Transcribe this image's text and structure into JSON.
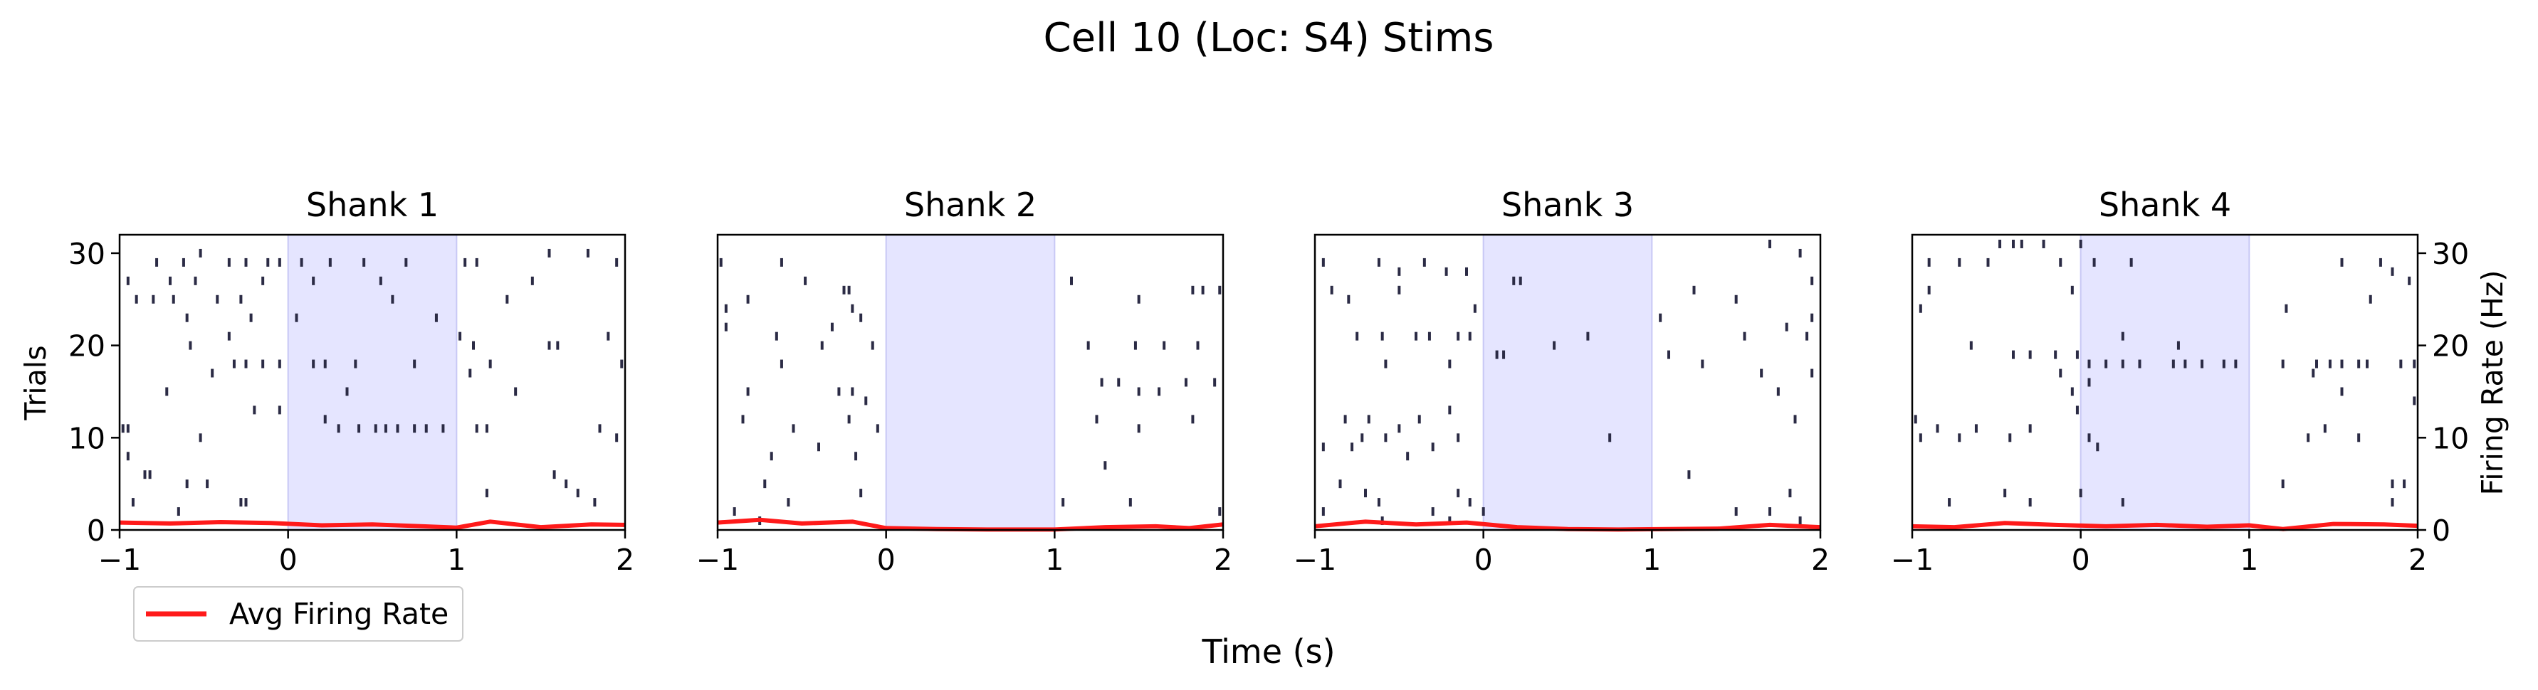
{
  "figure": {
    "title": "Cell 10 (Loc: S4) Stims",
    "xlabel": "Time (s)",
    "ylabel_left": "Trials",
    "ylabel_right": "Firing Rate (Hz)",
    "legend": {
      "label": "Avg Firing Rate",
      "color": "#ff1a1a",
      "placement": "lower-left, below first panel"
    },
    "colors": {
      "spike": "#2b2b45",
      "stim_window": "#e5e5ff",
      "rate_line": "#ff1a1a"
    }
  },
  "chart_data": [
    {
      "type": "raster",
      "title": "Shank 1",
      "xlim": [
        -1,
        2
      ],
      "ylim": [
        0,
        32
      ],
      "xticks": [
        "−1",
        "0",
        "1",
        "2"
      ],
      "yticks_left": [
        "0",
        "10",
        "20",
        "30"
      ],
      "stim_window": [
        0,
        1
      ],
      "spikes": [
        [
          -0.78,
          29
        ],
        [
          -0.62,
          29
        ],
        [
          -0.52,
          30
        ],
        [
          -0.35,
          29
        ],
        [
          -0.25,
          29
        ],
        [
          -0.12,
          29
        ],
        [
          -0.05,
          29
        ],
        [
          0.08,
          29
        ],
        [
          0.25,
          29
        ],
        [
          0.45,
          29
        ],
        [
          0.7,
          29
        ],
        [
          1.05,
          29
        ],
        [
          1.12,
          29
        ],
        [
          1.55,
          30
        ],
        [
          1.78,
          30
        ],
        [
          1.95,
          29
        ],
        [
          -0.95,
          27
        ],
        [
          -0.7,
          27
        ],
        [
          -0.55,
          27
        ],
        [
          -0.15,
          27
        ],
        [
          0.15,
          27
        ],
        [
          0.55,
          27
        ],
        [
          1.45,
          27
        ],
        [
          -0.9,
          25
        ],
        [
          -0.8,
          25
        ],
        [
          -0.68,
          25
        ],
        [
          -0.42,
          25
        ],
        [
          -0.28,
          25
        ],
        [
          0.62,
          25
        ],
        [
          1.3,
          25
        ],
        [
          -0.6,
          23
        ],
        [
          -0.22,
          23
        ],
        [
          0.05,
          23
        ],
        [
          0.88,
          23
        ],
        [
          1.02,
          21
        ],
        [
          -0.35,
          21
        ],
        [
          1.9,
          21
        ],
        [
          -0.58,
          20
        ],
        [
          1.1,
          20
        ],
        [
          1.55,
          20
        ],
        [
          1.6,
          20
        ],
        [
          -0.32,
          18
        ],
        [
          -0.25,
          18
        ],
        [
          -0.15,
          18
        ],
        [
          -0.05,
          18
        ],
        [
          0.15,
          18
        ],
        [
          0.22,
          18
        ],
        [
          0.4,
          18
        ],
        [
          0.75,
          18
        ],
        [
          1.2,
          18
        ],
        [
          1.98,
          18
        ],
        [
          -0.45,
          17
        ],
        [
          1.08,
          17
        ],
        [
          -0.72,
          15
        ],
        [
          0.35,
          15
        ],
        [
          1.35,
          15
        ],
        [
          -0.2,
          13
        ],
        [
          -0.05,
          13
        ],
        [
          0.22,
          12
        ],
        [
          0.3,
          11
        ],
        [
          0.42,
          11
        ],
        [
          0.52,
          11
        ],
        [
          0.58,
          11
        ],
        [
          0.65,
          11
        ],
        [
          0.75,
          11
        ],
        [
          0.82,
          11
        ],
        [
          0.92,
          11
        ],
        [
          -0.98,
          11
        ],
        [
          -0.95,
          11
        ],
        [
          -0.52,
          10
        ],
        [
          1.12,
          11
        ],
        [
          1.18,
          11
        ],
        [
          1.85,
          11
        ],
        [
          1.95,
          10
        ],
        [
          -0.95,
          8
        ],
        [
          -0.85,
          6
        ],
        [
          -0.82,
          6
        ],
        [
          -0.6,
          5
        ],
        [
          -0.48,
          5
        ],
        [
          1.58,
          6
        ],
        [
          1.65,
          5
        ],
        [
          1.72,
          4
        ],
        [
          -0.92,
          3
        ],
        [
          -0.28,
          3
        ],
        [
          -0.25,
          3
        ],
        [
          1.18,
          4
        ],
        [
          1.82,
          3
        ],
        [
          -0.65,
          2
        ]
      ],
      "rate": {
        "x": [
          -1,
          -0.7,
          -0.4,
          -0.1,
          0.2,
          0.5,
          0.8,
          1.0,
          1.2,
          1.5,
          1.8,
          2.0
        ],
        "y": [
          0.8,
          0.7,
          0.85,
          0.75,
          0.5,
          0.6,
          0.4,
          0.25,
          0.9,
          0.3,
          0.6,
          0.55
        ]
      }
    },
    {
      "type": "raster",
      "title": "Shank 2",
      "xlim": [
        -1,
        2
      ],
      "ylim": [
        0,
        32
      ],
      "xticks": [
        "−1",
        "0",
        "1",
        "2"
      ],
      "stim_window": [
        0,
        1
      ],
      "spikes": [
        [
          -0.98,
          29
        ],
        [
          -0.62,
          29
        ],
        [
          -0.48,
          27
        ],
        [
          -0.82,
          25
        ],
        [
          -0.25,
          26
        ],
        [
          -0.22,
          26
        ],
        [
          -0.95,
          24
        ],
        [
          -0.95,
          22
        ],
        [
          -0.65,
          21
        ],
        [
          -0.32,
          22
        ],
        [
          -0.2,
          24
        ],
        [
          -0.15,
          23
        ],
        [
          -0.38,
          20
        ],
        [
          -0.08,
          20
        ],
        [
          -0.62,
          18
        ],
        [
          -0.82,
          15
        ],
        [
          -0.28,
          15
        ],
        [
          -0.2,
          15
        ],
        [
          -0.12,
          14
        ],
        [
          -0.85,
          12
        ],
        [
          -0.55,
          11
        ],
        [
          -0.22,
          12
        ],
        [
          -0.05,
          11
        ],
        [
          -0.68,
          8
        ],
        [
          -0.4,
          9
        ],
        [
          -0.18,
          8
        ],
        [
          -0.72,
          5
        ],
        [
          -0.15,
          4
        ],
        [
          -0.58,
          3
        ],
        [
          -0.9,
          2
        ],
        [
          -0.75,
          1
        ],
        [
          1.1,
          27
        ],
        [
          1.5,
          25
        ],
        [
          1.82,
          26
        ],
        [
          1.88,
          26
        ],
        [
          1.98,
          26
        ],
        [
          1.2,
          20
        ],
        [
          1.48,
          20
        ],
        [
          1.65,
          20
        ],
        [
          1.85,
          20
        ],
        [
          1.28,
          16
        ],
        [
          1.38,
          16
        ],
        [
          1.5,
          15
        ],
        [
          1.62,
          15
        ],
        [
          1.78,
          16
        ],
        [
          1.95,
          16
        ],
        [
          1.25,
          12
        ],
        [
          1.5,
          11
        ],
        [
          1.82,
          12
        ],
        [
          1.3,
          7
        ],
        [
          1.05,
          3
        ],
        [
          1.45,
          3
        ],
        [
          1.98,
          2
        ]
      ],
      "rate": {
        "x": [
          -1,
          -0.75,
          -0.5,
          -0.2,
          0.0,
          0.3,
          0.6,
          1.0,
          1.3,
          1.6,
          1.8,
          2.0
        ],
        "y": [
          0.8,
          1.1,
          0.7,
          0.9,
          0.2,
          0.1,
          0.05,
          0.05,
          0.3,
          0.4,
          0.2,
          0.6
        ]
      }
    },
    {
      "type": "raster",
      "title": "Shank 3",
      "xlim": [
        -1,
        2
      ],
      "ylim": [
        0,
        32
      ],
      "xticks": [
        "−1",
        "0",
        "1",
        "2"
      ],
      "stim_window": [
        0,
        1
      ],
      "spikes": [
        [
          -0.95,
          29
        ],
        [
          -0.62,
          29
        ],
        [
          -0.5,
          28
        ],
        [
          -0.35,
          29
        ],
        [
          -0.22,
          28
        ],
        [
          -0.1,
          28
        ],
        [
          1.7,
          31
        ],
        [
          1.88,
          30
        ],
        [
          -0.9,
          26
        ],
        [
          -0.5,
          26
        ],
        [
          -0.8,
          25
        ],
        [
          0.18,
          27
        ],
        [
          0.22,
          27
        ],
        [
          1.25,
          26
        ],
        [
          1.5,
          25
        ],
        [
          1.95,
          27
        ],
        [
          -0.05,
          24
        ],
        [
          1.05,
          23
        ],
        [
          1.8,
          22
        ],
        [
          1.95,
          23
        ],
        [
          -0.75,
          21
        ],
        [
          -0.6,
          21
        ],
        [
          -0.4,
          21
        ],
        [
          -0.32,
          21
        ],
        [
          -0.15,
          21
        ],
        [
          -0.08,
          21
        ],
        [
          0.42,
          20
        ],
        [
          0.62,
          21
        ],
        [
          1.1,
          19
        ],
        [
          1.55,
          21
        ],
        [
          1.92,
          21
        ],
        [
          -0.58,
          18
        ],
        [
          -0.2,
          18
        ],
        [
          0.08,
          19
        ],
        [
          0.12,
          19
        ],
        [
          1.3,
          18
        ],
        [
          1.65,
          17
        ],
        [
          1.75,
          15
        ],
        [
          1.95,
          17
        ],
        [
          -0.82,
          12
        ],
        [
          -0.68,
          12
        ],
        [
          -0.5,
          11
        ],
        [
          -0.38,
          12
        ],
        [
          -0.2,
          13
        ],
        [
          1.85,
          12
        ],
        [
          -0.95,
          9
        ],
        [
          -0.78,
          9
        ],
        [
          -0.72,
          10
        ],
        [
          -0.58,
          10
        ],
        [
          -0.45,
          8
        ],
        [
          -0.3,
          9
        ],
        [
          -0.15,
          10
        ],
        [
          0.75,
          10
        ],
        [
          -0.85,
          5
        ],
        [
          -0.7,
          4
        ],
        [
          -0.62,
          3
        ],
        [
          -0.15,
          4
        ],
        [
          -0.08,
          3
        ],
        [
          1.22,
          6
        ],
        [
          1.82,
          4
        ],
        [
          -0.95,
          2
        ],
        [
          -0.6,
          1
        ],
        [
          -0.3,
          2
        ],
        [
          -0.2,
          1
        ],
        [
          0.0,
          2
        ],
        [
          1.5,
          2
        ],
        [
          1.7,
          2
        ],
        [
          1.88,
          1
        ]
      ],
      "rate": {
        "x": [
          -1,
          -0.7,
          -0.4,
          -0.1,
          0.2,
          0.5,
          0.8,
          1.1,
          1.4,
          1.7,
          2.0
        ],
        "y": [
          0.4,
          0.9,
          0.6,
          0.8,
          0.3,
          0.1,
          0.05,
          0.1,
          0.15,
          0.55,
          0.3
        ]
      }
    },
    {
      "type": "raster",
      "title": "Shank 4",
      "xlim": [
        -1,
        2
      ],
      "ylim": [
        0,
        32
      ],
      "xticks": [
        "−1",
        "0",
        "1",
        "2"
      ],
      "yticks_right": [
        "0",
        "10",
        "20",
        "30"
      ],
      "stim_window": [
        0,
        1
      ],
      "spikes": [
        [
          -0.48,
          31
        ],
        [
          -0.4,
          31
        ],
        [
          -0.35,
          31
        ],
        [
          -0.22,
          31
        ],
        [
          0.0,
          31
        ],
        [
          -0.9,
          29
        ],
        [
          -0.72,
          29
        ],
        [
          -0.55,
          29
        ],
        [
          -0.12,
          29
        ],
        [
          0.08,
          29
        ],
        [
          0.3,
          29
        ],
        [
          1.55,
          29
        ],
        [
          1.78,
          29
        ],
        [
          1.85,
          28
        ],
        [
          1.95,
          27
        ],
        [
          -0.9,
          26
        ],
        [
          -0.05,
          26
        ],
        [
          -0.95,
          24
        ],
        [
          1.22,
          24
        ],
        [
          1.72,
          25
        ],
        [
          -0.65,
          20
        ],
        [
          -0.4,
          19
        ],
        [
          -0.3,
          19
        ],
        [
          -0.15,
          19
        ],
        [
          -0.02,
          19
        ],
        [
          0.25,
          21
        ],
        [
          0.58,
          20
        ],
        [
          -0.12,
          17
        ],
        [
          0.05,
          18
        ],
        [
          0.15,
          18
        ],
        [
          0.25,
          18
        ],
        [
          0.35,
          18
        ],
        [
          0.55,
          18
        ],
        [
          0.62,
          18
        ],
        [
          0.72,
          18
        ],
        [
          0.85,
          18
        ],
        [
          0.92,
          18
        ],
        [
          1.2,
          18
        ],
        [
          1.4,
          18
        ],
        [
          1.48,
          18
        ],
        [
          1.55,
          18
        ],
        [
          1.65,
          18
        ],
        [
          1.7,
          18
        ],
        [
          1.9,
          18
        ],
        [
          1.98,
          18
        ],
        [
          0.05,
          16
        ],
        [
          1.38,
          17
        ],
        [
          -0.05,
          15
        ],
        [
          -0.02,
          13
        ],
        [
          1.55,
          15
        ],
        [
          1.98,
          14
        ],
        [
          -0.98,
          12
        ],
        [
          -0.85,
          11
        ],
        [
          -0.95,
          10
        ],
        [
          -0.72,
          10
        ],
        [
          -0.62,
          11
        ],
        [
          -0.42,
          10
        ],
        [
          -0.3,
          11
        ],
        [
          0.05,
          10
        ],
        [
          0.1,
          9
        ],
        [
          1.35,
          10
        ],
        [
          1.45,
          11
        ],
        [
          1.65,
          10
        ],
        [
          -0.78,
          3
        ],
        [
          -0.45,
          4
        ],
        [
          -0.3,
          3
        ],
        [
          0.0,
          4
        ],
        [
          0.25,
          3
        ],
        [
          1.2,
          5
        ],
        [
          1.85,
          5
        ],
        [
          1.92,
          5
        ],
        [
          1.85,
          3
        ]
      ],
      "rate": {
        "x": [
          -1,
          -0.75,
          -0.45,
          -0.15,
          0.15,
          0.45,
          0.75,
          1.0,
          1.2,
          1.5,
          1.8,
          2.0
        ],
        "y": [
          0.4,
          0.3,
          0.75,
          0.55,
          0.4,
          0.55,
          0.35,
          0.5,
          0.1,
          0.65,
          0.6,
          0.45
        ]
      }
    }
  ]
}
